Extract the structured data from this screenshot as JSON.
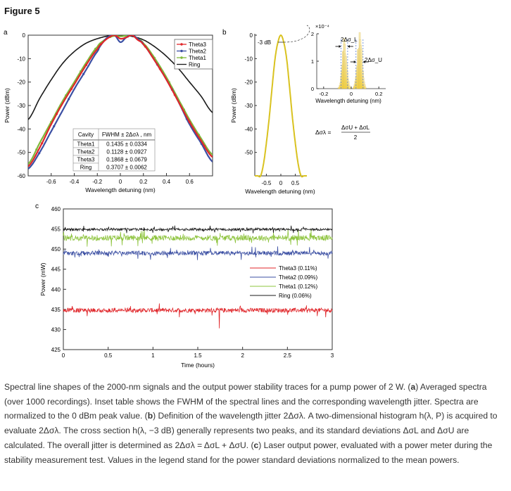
{
  "figure_title": "Figure 5",
  "panels": {
    "a": {
      "letter": "a"
    },
    "b": {
      "letter": "b"
    },
    "c": {
      "letter": "c"
    }
  },
  "chart_data": [
    {
      "type": "line",
      "panel": "a",
      "xlabel": "Wavelength detuning (nm)",
      "ylabel": "Power (dBm)",
      "xlim": [
        -0.8,
        0.8
      ],
      "ylim": [
        -60,
        0
      ],
      "xticks": [
        -0.6,
        -0.4,
        -0.2,
        0,
        0.2,
        0.4,
        0.6
      ],
      "xtick_labels": [
        "-0.6",
        "-0.4",
        "-0.2",
        "0",
        "0.2",
        "0.4",
        "0.6"
      ],
      "yticks": [
        0,
        -10,
        -20,
        -30,
        -40,
        -50,
        -60
      ],
      "ytick_labels": [
        "0",
        "-10",
        "-20",
        "-30",
        "-40",
        "-50",
        "-60"
      ],
      "legend_position": "top-right",
      "series": [
        {
          "name": "Theta3",
          "color": "#e0262a",
          "marker": "dot",
          "x": [
            -0.8,
            -0.7,
            -0.6,
            -0.5,
            -0.4,
            -0.3,
            -0.2,
            -0.15,
            -0.1,
            -0.05,
            0,
            0.05,
            0.1,
            0.15,
            0.2,
            0.3,
            0.4,
            0.5,
            0.6,
            0.7,
            0.8
          ],
          "y": [
            -56,
            -48,
            -38,
            -29,
            -21,
            -13,
            -6,
            -3,
            -1,
            0,
            -1.5,
            -1,
            0,
            -2,
            -4,
            -11,
            -19,
            -28,
            -37,
            -45,
            -52
          ]
        },
        {
          "name": "Theta2",
          "color": "#3b4fa3",
          "marker": "dot",
          "x": [
            -0.8,
            -0.7,
            -0.6,
            -0.5,
            -0.4,
            -0.3,
            -0.2,
            -0.15,
            -0.1,
            -0.05,
            0,
            0.05,
            0.1,
            0.15,
            0.2,
            0.3,
            0.4,
            0.5,
            0.6,
            0.7,
            0.8
          ],
          "y": [
            -57,
            -50,
            -41,
            -32,
            -23,
            -15,
            -7,
            -3,
            -0.5,
            0,
            -3,
            -1,
            0,
            -1.5,
            -4,
            -11,
            -19,
            -28,
            -38,
            -46,
            -54
          ]
        },
        {
          "name": "Theta1",
          "color": "#7fb83a",
          "marker": "star",
          "x": [
            -0.8,
            -0.7,
            -0.6,
            -0.5,
            -0.4,
            -0.3,
            -0.2,
            -0.15,
            -0.1,
            -0.05,
            0,
            0.05,
            0.1,
            0.15,
            0.2,
            0.3,
            0.4,
            0.5,
            0.6,
            0.7,
            0.8
          ],
          "y": [
            -55,
            -46,
            -37,
            -28,
            -20,
            -12,
            -5,
            -2.5,
            -1,
            -0.3,
            -0.5,
            -0.2,
            0,
            -1.5,
            -3.5,
            -10,
            -18,
            -27,
            -36,
            -44,
            -51
          ]
        },
        {
          "name": "Ring",
          "color": "#1a1a1a",
          "marker": "none",
          "x": [
            -0.8,
            -0.7,
            -0.6,
            -0.5,
            -0.4,
            -0.3,
            -0.2,
            -0.1,
            0,
            0.1,
            0.2,
            0.3,
            0.4,
            0.5,
            0.6,
            0.7,
            0.8
          ],
          "y": [
            -36,
            -27,
            -19,
            -12,
            -7,
            -3.5,
            -1.5,
            -0.3,
            0,
            -0.5,
            -2,
            -5,
            -9,
            -14,
            -20,
            -26,
            -33
          ]
        }
      ],
      "inset_table": {
        "header": [
          "Cavity",
          "FWHM ± 2Δσλ , nm"
        ],
        "rows": [
          [
            "Theta1",
            "0.1435 ± 0.0334"
          ],
          [
            "Theta2",
            "0.1128 ± 0.0927"
          ],
          [
            "Theta3",
            "0.1868 ± 0.0679"
          ],
          [
            "Ring",
            "0.3707 ± 0.0062"
          ]
        ]
      }
    },
    {
      "type": "line",
      "panel": "b",
      "xlabel": "Wavelength detuning (nm)",
      "ylabel": "Power (dBm)",
      "xlim": [
        -0.9,
        0.9
      ],
      "ylim": [
        -60,
        0
      ],
      "xticks": [
        -0.5,
        0,
        0.5
      ],
      "xtick_labels": [
        "-0.5",
        "0",
        "0.5"
      ],
      "yticks": [
        0,
        -10,
        -20,
        -30,
        -40,
        -50
      ],
      "ytick_labels": [
        "0",
        "-10",
        "-20",
        "-30",
        "-40",
        "-50"
      ],
      "annotation": "-3 dB",
      "series": [
        {
          "name": "",
          "color": "#d9c21f",
          "x": [
            -0.9,
            -0.8,
            -0.7,
            -0.6,
            -0.5,
            -0.4,
            -0.3,
            -0.2,
            -0.1,
            0,
            0.1,
            0.2,
            0.3,
            0.4,
            0.5,
            0.6,
            0.7,
            0.8,
            0.9
          ],
          "y": [
            -60,
            -60,
            -60,
            -55,
            -46,
            -35,
            -22,
            -10,
            -3,
            0,
            -3,
            -10,
            -22,
            -35,
            -46,
            -55,
            -60,
            -60,
            -60
          ]
        }
      ],
      "inset": {
        "xlabel": "Wavelength detuning (nm)",
        "exponent": "×10⁻⁴",
        "xlim": [
          -0.25,
          0.25
        ],
        "ylim": [
          0,
          2
        ],
        "xticks": [
          -0.2,
          0,
          0.2
        ],
        "xtick_labels": [
          "-0.2",
          "0",
          "0.2"
        ],
        "yticks": [
          0,
          1,
          2
        ],
        "ytick_labels": [
          "0",
          "1",
          "2"
        ],
        "peaks": [
          {
            "center": -0.05,
            "sigma": 0.015,
            "height": 1.6
          },
          {
            "center": 0.06,
            "sigma": 0.016,
            "height": 1.8
          }
        ],
        "label_lower": "2Δσ_L",
        "label_upper": "2Δσ_U"
      },
      "formula": {
        "lhs": "Δσλ =",
        "numerator": "ΔσU + ΔσL",
        "denominator": "2"
      }
    },
    {
      "type": "line",
      "panel": "c",
      "xlabel": "Time (hours)",
      "ylabel": "Power (mW)",
      "xlim": [
        0,
        3
      ],
      "ylim": [
        425,
        460
      ],
      "xticks": [
        0,
        0.5,
        1,
        1.5,
        2,
        2.5,
        3
      ],
      "xtick_labels": [
        "0",
        "0.5",
        "1",
        "1.5",
        "2",
        "2.5",
        "3"
      ],
      "yticks": [
        425,
        430,
        435,
        440,
        445,
        450,
        455,
        460
      ],
      "ytick_labels": [
        "425",
        "430",
        "435",
        "440",
        "445",
        "450",
        "455",
        "460"
      ],
      "legend_position": "bottom-right",
      "series": [
        {
          "name": "Theta3 (0.11%)",
          "color": "#e0262a",
          "mean": 434.8,
          "noise": 0.55
        },
        {
          "name": "Theta2 (0.09%)",
          "color": "#3b4fa3",
          "mean": 449.0,
          "noise": 0.55
        },
        {
          "name": "Theta1 (0.12%)",
          "color": "#8ec43e",
          "mean": 452.8,
          "noise": 0.7
        },
        {
          "name": "Ring (0.06%)",
          "color": "#1a1a1a",
          "mean": 454.9,
          "noise": 0.3
        }
      ]
    }
  ],
  "caption": {
    "s1": "Spectral line shapes of the 2000-nm signals and the output power stability traces for a pump power of 2 W. (",
    "a": "a",
    "s2": ") Averaged spectra (over 1000 recordings). Inset table shows the FWHM of the spectral lines and the corresponding wavelength jitter. Spectra are normalized to the 0 dBm peak value. (",
    "b": "b",
    "s3": ") Definition of the wavelength jitter 2Δσλ. A two-dimensional histogram h(λ, P) is acquired to evaluate 2Δσλ. The cross section h(λ, −3 dB) generally represents two peaks, and its standard deviations ΔσL and ΔσU are calculated. The overall jitter is determined as 2Δσλ = ΔσL + ΔσU. (",
    "c": "c",
    "s4": ") Laser output power, evaluated with a power meter during the stability measurement test. Values in the legend stand for the power standard deviations normalized to the mean powers."
  }
}
